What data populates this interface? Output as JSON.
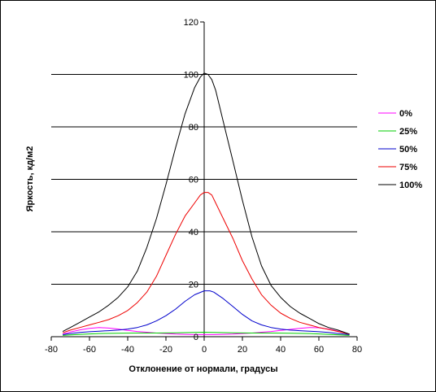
{
  "chart_data": {
    "type": "line",
    "title": "",
    "xlabel": "Отклонение от нормали, градусы",
    "ylabel": "Яркость, кд/м2",
    "xlim": [
      -80,
      80
    ],
    "ylim": [
      0,
      120
    ],
    "xticks": [
      -80,
      -60,
      -40,
      -20,
      0,
      20,
      40,
      60,
      80
    ],
    "yticks": [
      0,
      20,
      40,
      60,
      80,
      100,
      120
    ],
    "grid": "horizontal major",
    "legend": "right",
    "series": [
      {
        "name": "0%",
        "color": "#ff00ff",
        "x": [
          -74,
          -70,
          -65,
          -60,
          -55,
          -50,
          -45,
          -40,
          -35,
          -30,
          -25,
          -20,
          -15,
          -10,
          -5,
          0,
          5,
          10,
          15,
          20,
          25,
          30,
          35,
          40,
          45,
          50,
          55,
          60,
          65,
          70,
          76
        ],
        "y": [
          1,
          1.8,
          2.6,
          3.2,
          3.5,
          3.3,
          2.9,
          2.4,
          2.0,
          1.7,
          1.4,
          1.2,
          1.0,
          0.9,
          0.8,
          0.8,
          0.8,
          0.9,
          1.0,
          1.2,
          1.4,
          1.7,
          2.0,
          2.4,
          2.8,
          3.2,
          3.5,
          3.4,
          2.9,
          2.1,
          1.0
        ]
      },
      {
        "name": "25%",
        "color": "#00cc00",
        "x": [
          -74,
          -65,
          -55,
          -45,
          -35,
          -25,
          -15,
          -5,
          0,
          5,
          15,
          25,
          35,
          45,
          55,
          65,
          76
        ],
        "y": [
          0.5,
          0.9,
          1.2,
          1.3,
          1.4,
          1.4,
          1.5,
          1.6,
          1.7,
          1.6,
          1.5,
          1.4,
          1.4,
          1.3,
          1.2,
          0.9,
          0.5
        ]
      },
      {
        "name": "50%",
        "color": "#0000cc",
        "x": [
          -74,
          -70,
          -65,
          -60,
          -55,
          -50,
          -45,
          -40,
          -35,
          -30,
          -25,
          -20,
          -15,
          -10,
          -5,
          0,
          3,
          5,
          10,
          15,
          20,
          25,
          30,
          35,
          40,
          45,
          50,
          55,
          60,
          65,
          70,
          76
        ],
        "y": [
          0.8,
          1.2,
          1.6,
          1.9,
          2.1,
          2.3,
          2.5,
          2.9,
          3.5,
          4.5,
          6.0,
          8.0,
          10.5,
          13.5,
          16.0,
          17.5,
          17.5,
          17.0,
          14.5,
          11.5,
          8.5,
          6.0,
          4.5,
          3.5,
          2.9,
          2.5,
          2.3,
          2.1,
          1.9,
          1.6,
          1.2,
          0.8
        ]
      },
      {
        "name": "75%",
        "color": "#ee0000",
        "x": [
          -74,
          -70,
          -65,
          -60,
          -55,
          -50,
          -45,
          -40,
          -35,
          -30,
          -25,
          -20,
          -15,
          -10,
          -5,
          -2,
          0,
          2,
          4,
          6,
          10,
          15,
          20,
          25,
          30,
          35,
          40,
          45,
          50,
          55,
          60,
          65,
          70,
          76
        ],
        "y": [
          1.5,
          2.5,
          3.5,
          4.5,
          5.5,
          6.5,
          8.0,
          10.0,
          13.0,
          17.0,
          23.0,
          31.0,
          39.0,
          46.0,
          51.0,
          54.0,
          55.0,
          55.0,
          54.0,
          51.0,
          45.0,
          37.5,
          29.0,
          22.0,
          16.0,
          12.0,
          9.0,
          7.0,
          5.5,
          4.5,
          3.5,
          2.8,
          2.0,
          1.0
        ]
      },
      {
        "name": "100%",
        "color": "#000000",
        "x": [
          -74,
          -70,
          -65,
          -60,
          -55,
          -50,
          -45,
          -40,
          -35,
          -30,
          -25,
          -20,
          -15,
          -10,
          -5,
          -2,
          0,
          2,
          4,
          6,
          10,
          15,
          20,
          25,
          30,
          35,
          40,
          45,
          50,
          55,
          60,
          65,
          70,
          76
        ],
        "y": [
          2,
          3.5,
          5.5,
          7.5,
          9.5,
          12.0,
          15.0,
          19.0,
          25.0,
          34.0,
          45.0,
          58.0,
          72.0,
          85.0,
          95.0,
          99.0,
          100.5,
          100.0,
          98.0,
          94.0,
          82.0,
          67.0,
          52.0,
          38.0,
          27.0,
          19.5,
          15.0,
          11.5,
          9.0,
          7.0,
          5.0,
          3.5,
          2.5,
          1.0
        ]
      }
    ]
  }
}
